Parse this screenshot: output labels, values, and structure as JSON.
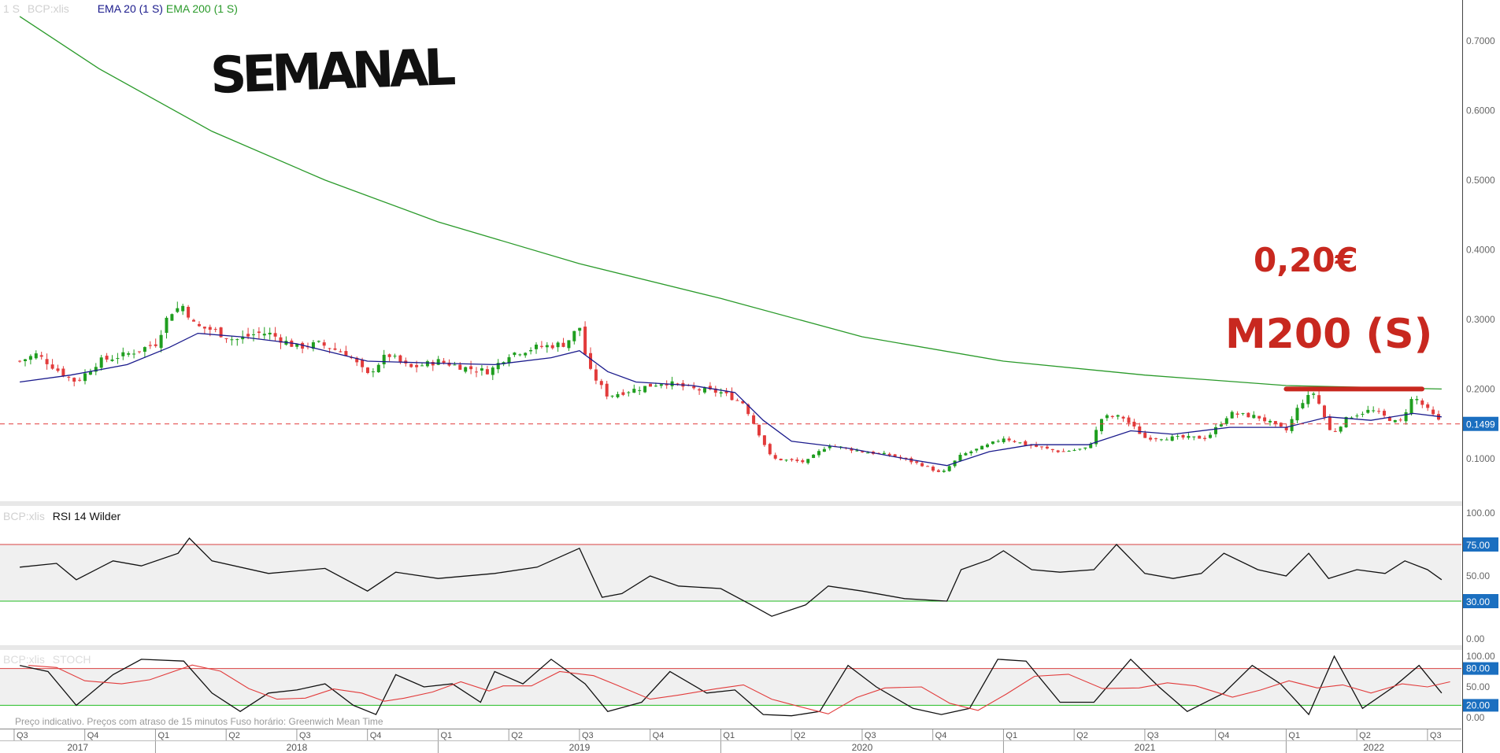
{
  "colors": {
    "up": "#1f9e1f",
    "down": "#e23b3b",
    "ema20": "#1a1a8c",
    "ema200": "#2a9a2a",
    "rsi": "#111111",
    "stoch_k": "#111111",
    "stoch_d": "#e23b3b",
    "upper_band": "#d94040",
    "lower_band": "#22bb22",
    "annotation": "#c8281f",
    "current_price": "#e23b3b",
    "level_tag": "#1b6fc0"
  },
  "price_panel": {
    "legend": {
      "interval": "1 S",
      "symbol": "BCP:xlis",
      "ema20_label": "EMA 20  (1 S)",
      "ema200_label": "EMA 200  (1 S)"
    },
    "y_ticks": [
      "0.7000",
      "0.6000",
      "0.5000",
      "0.4000",
      "0.3000",
      "0.2000",
      "0.1000"
    ],
    "current_price_label": "0.1499",
    "handwritten": {
      "title": "SEMANAL",
      "price_note": "0,20€",
      "ma_note": "M200 (S)"
    }
  },
  "rsi_panel": {
    "symbol": "BCP:xlis",
    "title": "RSI 14 Wilder",
    "y_ticks": [
      "100.00",
      "75.00",
      "50.00",
      "30.00",
      "0.00"
    ],
    "upper_tag": "75.00",
    "lower_tag": "30.00"
  },
  "stoch_panel": {
    "symbol": "BCP:xlis",
    "title": "STOCH",
    "y_ticks": [
      "100.00",
      "80.00",
      "50.00",
      "20.00",
      "0.00"
    ],
    "upper_tag": "80.00",
    "lower_tag": "20.00",
    "footer_note": "Preço indicativo. Preços com atraso de 15 minutos    Fuso horário: Greenwich Mean Time"
  },
  "time_axis": {
    "quarters": [
      "Q3",
      "Q4",
      "Q1",
      "Q2",
      "Q3",
      "Q4",
      "Q1",
      "Q2",
      "Q3",
      "Q4",
      "Q1",
      "Q2",
      "Q3",
      "Q4",
      "Q1",
      "Q2",
      "Q3",
      "Q4",
      "Q1",
      "Q2",
      "Q3"
    ],
    "years": [
      "2017",
      "2018",
      "2019",
      "2020",
      "2021",
      "2022"
    ]
  },
  "chart_data": [
    {
      "type": "candlestick",
      "title": "BCP:xlis",
      "interval": "1 S",
      "y_scale": "linear",
      "ylim": [
        0.04,
        0.745
      ],
      "x_range": [
        "2017-Q3",
        "2022-Q3"
      ],
      "current_price": 0.1499,
      "close_path": [
        [
          2017.52,
          0.24
        ],
        [
          2017.58,
          0.25
        ],
        [
          2017.66,
          0.225
        ],
        [
          2017.72,
          0.21
        ],
        [
          2017.8,
          0.24
        ],
        [
          2017.9,
          0.25
        ],
        [
          2018.0,
          0.265
        ],
        [
          2018.05,
          0.31
        ],
        [
          2018.1,
          0.32
        ],
        [
          2018.14,
          0.29
        ],
        [
          2018.2,
          0.285
        ],
        [
          2018.28,
          0.27
        ],
        [
          2018.36,
          0.28
        ],
        [
          2018.4,
          0.28
        ],
        [
          2018.5,
          0.26
        ],
        [
          2018.58,
          0.265
        ],
        [
          2018.68,
          0.25
        ],
        [
          2018.75,
          0.22
        ],
        [
          2018.82,
          0.25
        ],
        [
          2018.9,
          0.23
        ],
        [
          2019.0,
          0.24
        ],
        [
          2019.1,
          0.23
        ],
        [
          2019.18,
          0.225
        ],
        [
          2019.25,
          0.25
        ],
        [
          2019.35,
          0.26
        ],
        [
          2019.45,
          0.265
        ],
        [
          2019.5,
          0.29
        ],
        [
          2019.53,
          0.23
        ],
        [
          2019.6,
          0.19
        ],
        [
          2019.7,
          0.2
        ],
        [
          2019.8,
          0.21
        ],
        [
          2019.9,
          0.2
        ],
        [
          2020.0,
          0.195
        ],
        [
          2020.08,
          0.18
        ],
        [
          2020.13,
          0.14
        ],
        [
          2020.18,
          0.1
        ],
        [
          2020.3,
          0.095
        ],
        [
          2020.38,
          0.12
        ],
        [
          2020.5,
          0.11
        ],
        [
          2020.6,
          0.105
        ],
        [
          2020.72,
          0.09
        ],
        [
          2020.78,
          0.078
        ],
        [
          2020.85,
          0.105
        ],
        [
          2020.95,
          0.12
        ],
        [
          2021.0,
          0.13
        ],
        [
          2021.08,
          0.12
        ],
        [
          2021.2,
          0.11
        ],
        [
          2021.3,
          0.115
        ],
        [
          2021.35,
          0.16
        ],
        [
          2021.42,
          0.16
        ],
        [
          2021.5,
          0.13
        ],
        [
          2021.6,
          0.13
        ],
        [
          2021.72,
          0.13
        ],
        [
          2021.8,
          0.165
        ],
        [
          2021.9,
          0.16
        ],
        [
          2022.0,
          0.14
        ],
        [
          2022.05,
          0.18
        ],
        [
          2022.1,
          0.195
        ],
        [
          2022.16,
          0.135
        ],
        [
          2022.22,
          0.16
        ],
        [
          2022.3,
          0.17
        ],
        [
          2022.4,
          0.15
        ],
        [
          2022.45,
          0.19
        ],
        [
          2022.5,
          0.17
        ],
        [
          2022.55,
          0.1499
        ]
      ],
      "ema20": [
        [
          2017.52,
          0.21
        ],
        [
          2017.7,
          0.22
        ],
        [
          2017.9,
          0.235
        ],
        [
          2018.05,
          0.26
        ],
        [
          2018.15,
          0.28
        ],
        [
          2018.3,
          0.275
        ],
        [
          2018.5,
          0.265
        ],
        [
          2018.75,
          0.24
        ],
        [
          2019.0,
          0.237
        ],
        [
          2019.2,
          0.235
        ],
        [
          2019.4,
          0.245
        ],
        [
          2019.5,
          0.255
        ],
        [
          2019.6,
          0.225
        ],
        [
          2019.7,
          0.21
        ],
        [
          2019.9,
          0.205
        ],
        [
          2020.05,
          0.195
        ],
        [
          2020.15,
          0.155
        ],
        [
          2020.25,
          0.125
        ],
        [
          2020.45,
          0.115
        ],
        [
          2020.65,
          0.1
        ],
        [
          2020.8,
          0.09
        ],
        [
          2020.95,
          0.11
        ],
        [
          2021.1,
          0.12
        ],
        [
          2021.3,
          0.12
        ],
        [
          2021.45,
          0.14
        ],
        [
          2021.6,
          0.135
        ],
        [
          2021.8,
          0.145
        ],
        [
          2022.0,
          0.145
        ],
        [
          2022.15,
          0.16
        ],
        [
          2022.3,
          0.155
        ],
        [
          2022.45,
          0.165
        ],
        [
          2022.55,
          0.16
        ]
      ],
      "ema200": [
        [
          2017.52,
          0.735
        ],
        [
          2017.8,
          0.66
        ],
        [
          2018.2,
          0.57
        ],
        [
          2018.6,
          0.5
        ],
        [
          2019.0,
          0.44
        ],
        [
          2019.5,
          0.38
        ],
        [
          2020.0,
          0.33
        ],
        [
          2020.5,
          0.275
        ],
        [
          2021.0,
          0.24
        ],
        [
          2021.5,
          0.22
        ],
        [
          2022.0,
          0.205
        ],
        [
          2022.55,
          0.2
        ]
      ]
    },
    {
      "type": "line",
      "title": "RSI 14 Wilder",
      "ylim": [
        0,
        100
      ],
      "levels": [
        30,
        75
      ],
      "x": [
        2017.52,
        2017.65,
        2017.72,
        2017.85,
        2017.95,
        2018.08,
        2018.12,
        2018.2,
        2018.4,
        2018.6,
        2018.75,
        2018.85,
        2019.0,
        2019.2,
        2019.35,
        2019.5,
        2019.58,
        2019.65,
        2019.75,
        2019.85,
        2020.0,
        2020.1,
        2020.18,
        2020.3,
        2020.38,
        2020.5,
        2020.65,
        2020.8,
        2020.85,
        2020.95,
        2021.0,
        2021.1,
        2021.2,
        2021.32,
        2021.4,
        2021.5,
        2021.6,
        2021.7,
        2021.78,
        2021.9,
        2022.0,
        2022.08,
        2022.15,
        2022.25,
        2022.35,
        2022.42,
        2022.5,
        2022.55
      ],
      "values": [
        57,
        60,
        47,
        62,
        58,
        68,
        80,
        62,
        52,
        56,
        38,
        53,
        48,
        52,
        57,
        72,
        33,
        36,
        50,
        42,
        40,
        28,
        18,
        27,
        42,
        38,
        32,
        30,
        55,
        63,
        70,
        55,
        53,
        55,
        75,
        52,
        48,
        52,
        68,
        55,
        50,
        68,
        48,
        55,
        52,
        62,
        55,
        47
      ]
    },
    {
      "type": "line",
      "title": "STOCH",
      "ylim": [
        0,
        100
      ],
      "levels": [
        20,
        80
      ],
      "series": [
        {
          "x": [
            2017.52,
            2017.62,
            2017.72,
            2017.85,
            2017.95,
            2018.1,
            2018.2,
            2018.3,
            2018.4,
            2018.5,
            2018.6,
            2018.7,
            2018.78,
            2018.85,
            2018.95,
            2019.05,
            2019.15,
            2019.2,
            2019.3,
            2019.4,
            2019.52,
            2019.6,
            2019.72,
            2019.82,
            2019.95,
            2020.05,
            2020.15,
            2020.25,
            2020.35,
            2020.45,
            2020.55,
            2020.68,
            2020.78,
            2020.88,
            2020.98,
            2021.08,
            2021.2,
            2021.32,
            2021.45,
            2021.55,
            2021.65,
            2021.78,
            2021.88,
            2021.98,
            2022.08,
            2022.17,
            2022.27,
            2022.38,
            2022.47,
            2022.55
          ],
          "values": [
            85,
            75,
            20,
            70,
            95,
            92,
            40,
            10,
            40,
            45,
            55,
            20,
            5,
            70,
            50,
            55,
            25,
            75,
            55,
            95,
            55,
            10,
            25,
            75,
            40,
            45,
            5,
            3,
            10,
            85,
            50,
            15,
            5,
            15,
            95,
            92,
            25,
            25,
            95,
            50,
            10,
            40,
            85,
            55,
            5,
            100,
            15,
            50,
            85,
            40
          ]
        }
      ]
    }
  ]
}
